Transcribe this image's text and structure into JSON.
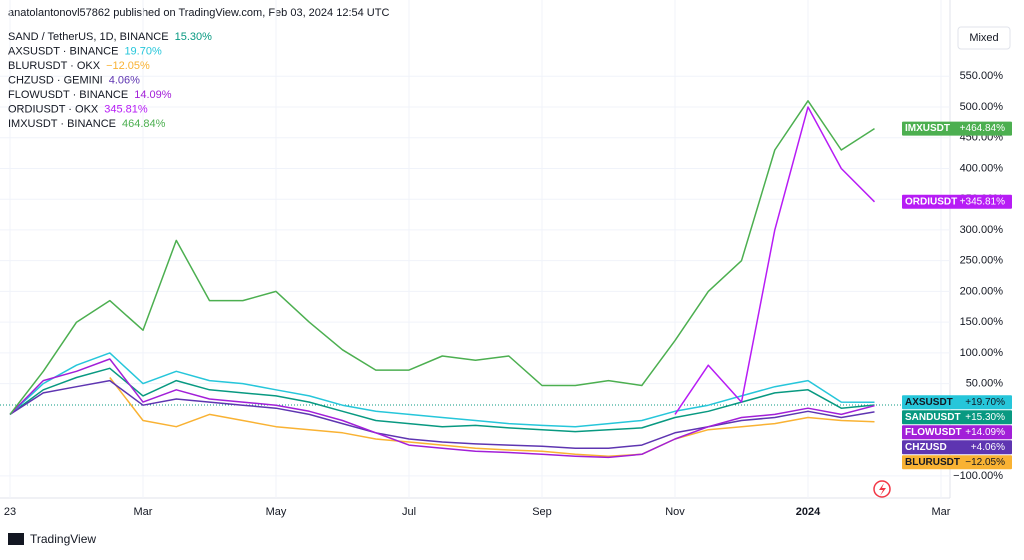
{
  "header": {
    "publisher": "anatolantonovl57862 published on TradingView.com, Feb 03, 2024 12:54 UTC",
    "mode_button": "Mixed",
    "brand": "TradingView"
  },
  "chart_data": {
    "type": "line",
    "categories": [
      "23",
      null,
      null,
      null,
      "Mar",
      null,
      null,
      null,
      "May",
      null,
      null,
      null,
      "Jul",
      null,
      null,
      null,
      "Sep",
      null,
      null,
      null,
      "Nov",
      null,
      null,
      null,
      "2024",
      null,
      null,
      null,
      "Mar"
    ],
    "ylim": [
      -123,
      674
    ],
    "yticks": [
      {
        "value": 550,
        "label": "550.00%"
      },
      {
        "value": 500,
        "label": "500.00%"
      },
      {
        "value": 450,
        "label": "450.00%"
      },
      {
        "value": 400,
        "label": "400.00%"
      },
      {
        "value": 350,
        "label": "350.00%"
      },
      {
        "value": 300,
        "label": "300.00%"
      },
      {
        "value": 250,
        "label": "250.00%"
      },
      {
        "value": 200,
        "label": "200.00%"
      },
      {
        "value": 150,
        "label": "150.00%"
      },
      {
        "value": 100,
        "label": "100.00%"
      },
      {
        "value": 50,
        "label": "50.00%"
      },
      {
        "value": -100,
        "label": "−100.00%"
      }
    ],
    "grid": true,
    "series": [
      {
        "name": "SAND / TetherUS, 1D, BINANCE",
        "legend_value": "15.30%",
        "tag": "SANDUSDT",
        "end_label": "+15.30%",
        "color": "#089981",
        "text_color": "#ffffff",
        "values": [
          0,
          40,
          60,
          75,
          30,
          55,
          40,
          35,
          30,
          20,
          5,
          -10,
          -15,
          -20,
          -18,
          -22,
          -25,
          -28,
          -25,
          -22,
          -5,
          5,
          20,
          35,
          40,
          10,
          15.3,
          null,
          null
        ]
      },
      {
        "name": "AXSUSDT · BINANCE",
        "legend_value": "19.70%",
        "tag": "AXSUSDT",
        "end_label": "+19.70%",
        "color": "#26c6da",
        "text_color": "#131722",
        "values": [
          0,
          50,
          80,
          100,
          50,
          70,
          55,
          50,
          40,
          30,
          15,
          5,
          0,
          -5,
          -10,
          -15,
          -18,
          -20,
          -15,
          -10,
          5,
          15,
          30,
          45,
          55,
          20,
          19.7,
          null,
          null
        ]
      },
      {
        "name": "BLURUSDT · OKX",
        "legend_value": "−12.05%",
        "tag": "BLURUSDT",
        "end_label": "−12.05%",
        "color": "#f9b233",
        "text_color": "#131722",
        "values": [
          null,
          null,
          null,
          60,
          -10,
          -20,
          0,
          -10,
          -20,
          -25,
          -30,
          -40,
          -45,
          -50,
          -55,
          -58,
          -60,
          -65,
          -68,
          -65,
          -40,
          -25,
          -20,
          -15,
          -5,
          -10,
          -12.05,
          null,
          null
        ]
      },
      {
        "name": "CHZUSD · GEMINI",
        "legend_value": "4.06%",
        "tag": "CHZUSD",
        "end_label": "+4.06%",
        "color": "#5e35b1",
        "text_color": "#ffffff",
        "values": [
          0,
          35,
          45,
          55,
          15,
          25,
          20,
          15,
          10,
          0,
          -15,
          -30,
          -40,
          -45,
          -48,
          -50,
          -52,
          -55,
          -55,
          -50,
          -30,
          -20,
          -10,
          -5,
          5,
          -5,
          4.06,
          null,
          null
        ]
      },
      {
        "name": "FLOWUSDT · BINANCE",
        "legend_value": "14.09%",
        "tag": "FLOWUSDT",
        "end_label": "+14.09%",
        "color": "#a21fd8",
        "text_color": "#ffffff",
        "values": [
          0,
          55,
          70,
          90,
          20,
          40,
          25,
          20,
          15,
          5,
          -10,
          -30,
          -50,
          -55,
          -60,
          -62,
          -65,
          -68,
          -70,
          -65,
          -40,
          -20,
          -5,
          0,
          10,
          0,
          14.09,
          null,
          null
        ]
      },
      {
        "name": "ORDIUSDT · OKX",
        "legend_value": "345.81%",
        "tag": "ORDIUSDT",
        "end_label": "+345.81%",
        "color": "#b71cf5",
        "text_color": "#ffffff",
        "values": [
          null,
          null,
          null,
          null,
          null,
          null,
          null,
          null,
          null,
          null,
          null,
          null,
          null,
          null,
          null,
          null,
          null,
          null,
          null,
          null,
          0,
          80,
          20,
          300,
          500,
          400,
          345.81,
          null,
          null
        ]
      },
      {
        "name": "IMXUSDT · BINANCE",
        "legend_value": "464.84%",
        "tag": "IMXUSDT",
        "end_label": "+464.84%",
        "color": "#4caf50",
        "text_color": "#ffffff",
        "values": [
          0,
          70,
          150,
          185,
          137,
          283,
          185,
          185,
          200,
          150,
          105,
          72,
          72,
          95,
          88,
          95,
          47,
          47,
          55,
          47,
          120,
          200,
          250,
          430,
          510,
          430,
          464.84,
          null,
          null
        ]
      }
    ]
  }
}
